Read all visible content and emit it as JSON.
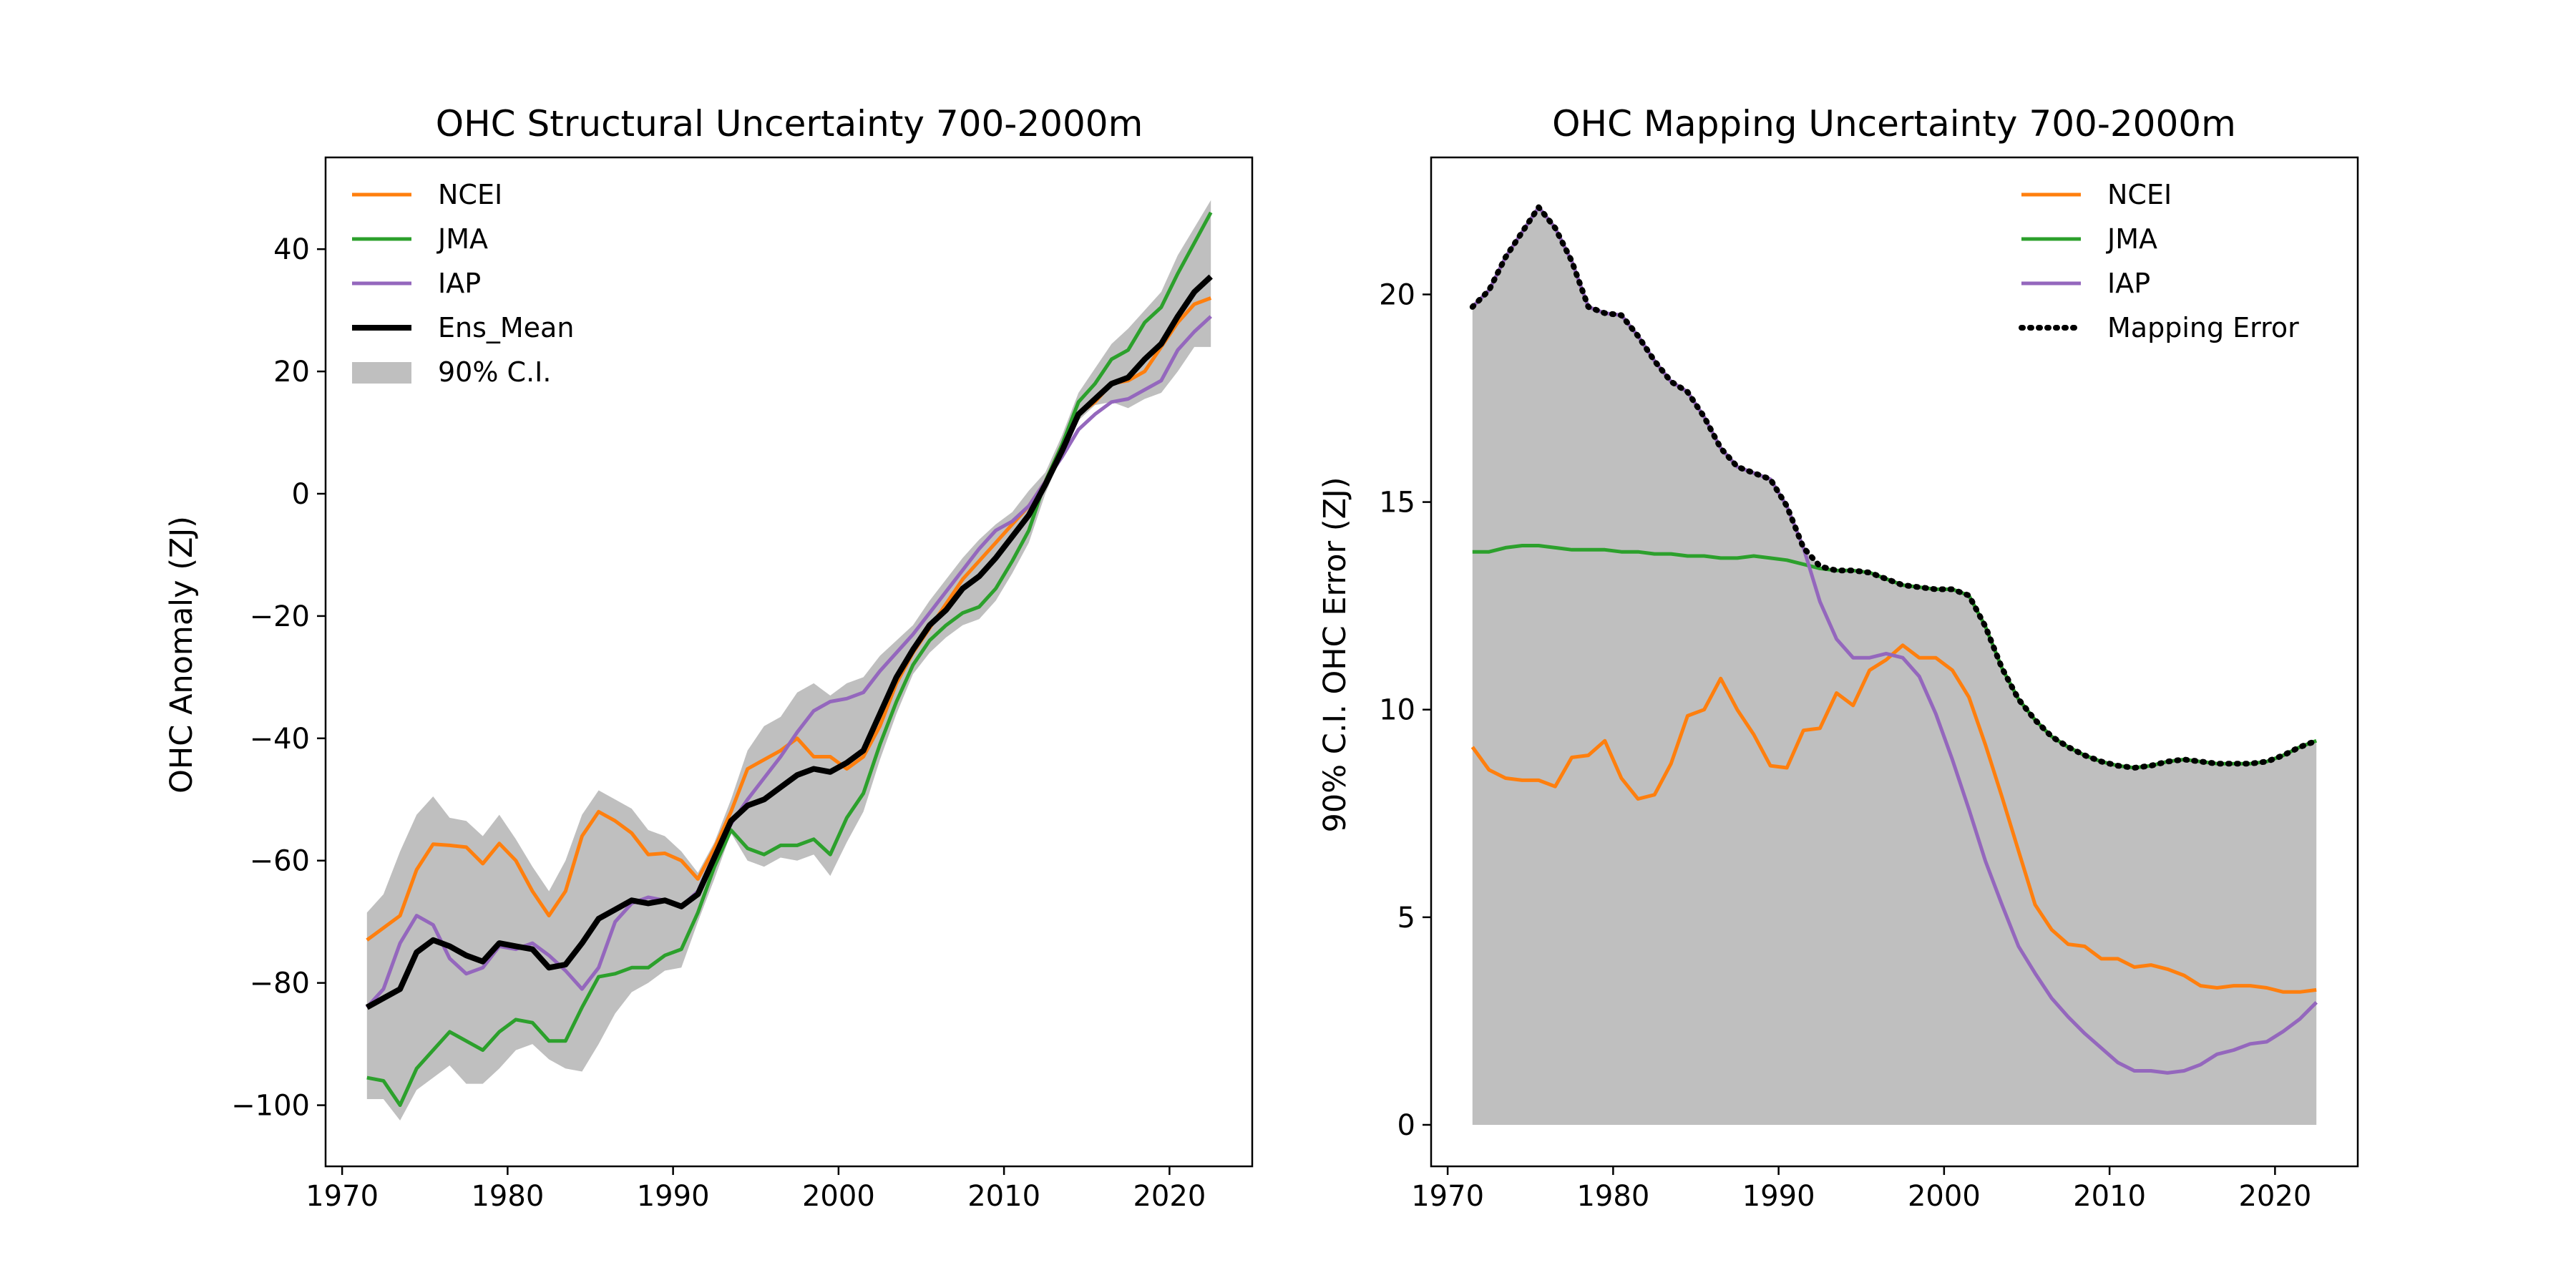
{
  "colors": {
    "ncei": "#ff7f0e",
    "jma": "#2ca02c",
    "iap": "#9467bd",
    "ens_mean": "#000000",
    "ci_fill": "#bfbfbf"
  },
  "chart_data": [
    {
      "type": "line",
      "title": "OHC Structural Uncertainty 700-2000m",
      "xlabel": "",
      "ylabel": "OHC Anomaly (ZJ)",
      "xlim": [
        1969.0,
        2025.0
      ],
      "ylim": [
        -110.0,
        55.0
      ],
      "xticks": [
        1970,
        1980,
        1990,
        2000,
        2010,
        2020
      ],
      "xtick_labels": [
        "1970",
        "1980",
        "1990",
        "2000",
        "2010",
        "2020"
      ],
      "yticks": [
        -100,
        -80,
        -60,
        -40,
        -20,
        0,
        20,
        40
      ],
      "ytick_labels": [
        "−100",
        "−80",
        "−60",
        "−40",
        "−20",
        "0",
        "20",
        "40"
      ],
      "legend_position": "upper-left",
      "x": [
        1971.5,
        1972.5,
        1973.5,
        1974.5,
        1975.5,
        1976.5,
        1977.5,
        1978.5,
        1979.5,
        1980.5,
        1981.5,
        1982.5,
        1983.5,
        1984.5,
        1985.5,
        1986.5,
        1987.5,
        1988.5,
        1989.5,
        1990.5,
        1991.5,
        1992.5,
        1993.5,
        1994.5,
        1995.5,
        1996.5,
        1997.5,
        1998.5,
        1999.5,
        2000.5,
        2001.5,
        2002.5,
        2003.5,
        2004.5,
        2005.5,
        2006.5,
        2007.5,
        2008.5,
        2009.5,
        2010.5,
        2011.5,
        2012.5,
        2013.5,
        2014.5,
        2015.5,
        2016.5,
        2017.5,
        2018.5,
        2019.5,
        2020.5,
        2021.5,
        2022.5
      ],
      "series": [
        {
          "name": "NCEI",
          "color_key": "ncei",
          "values": [
            -73.0,
            -71.0,
            -69.0,
            -61.5,
            -57.3,
            -57.5,
            -57.8,
            -60.5,
            -57.2,
            -60.0,
            -65.0,
            -69.0,
            -65.0,
            -56.0,
            -52.0,
            -53.5,
            -55.5,
            -59.0,
            -58.8,
            -60.0,
            -63.0,
            -58.0,
            -52.0,
            -45.0,
            -43.5,
            -42.0,
            -40.0,
            -43.0,
            -43.0,
            -45.0,
            -43.0,
            -38.0,
            -31.0,
            -26.0,
            -22.0,
            -18.0,
            -14.0,
            -11.0,
            -8.0,
            -5.0,
            -2.0,
            2.0,
            8.0,
            13.0,
            15.0,
            18.0,
            18.5,
            20.0,
            24.0,
            28.0,
            31.0,
            32.0
          ]
        },
        {
          "name": "JMA",
          "color_key": "jma",
          "values": [
            -95.5,
            -96.0,
            -100.0,
            -94.0,
            -91.0,
            -88.0,
            -89.5,
            -91.0,
            -88.0,
            -86.0,
            -86.5,
            -89.5,
            -89.5,
            -84.0,
            -79.0,
            -78.5,
            -77.5,
            -77.5,
            -75.5,
            -74.5,
            -68.5,
            -61.0,
            -55.0,
            -58.0,
            -59.0,
            -57.5,
            -57.5,
            -56.5,
            -59.0,
            -53.0,
            -49.0,
            -41.0,
            -34.0,
            -28.0,
            -24.0,
            -21.5,
            -19.5,
            -18.5,
            -15.5,
            -11.0,
            -6.0,
            2.0,
            8.0,
            15.0,
            18.0,
            22.0,
            23.5,
            28.0,
            30.5,
            36.0,
            41.0,
            46.0
          ]
        },
        {
          "name": "IAP",
          "color_key": "iap",
          "values": [
            -84.0,
            -81.0,
            -73.5,
            -69.0,
            -70.5,
            -76.0,
            -78.5,
            -77.5,
            -74.0,
            -74.5,
            -73.5,
            -75.5,
            -78.0,
            -81.0,
            -77.5,
            -70.0,
            -67.0,
            -66.0,
            -66.5,
            -67.5,
            -65.0,
            -59.0,
            -54.0,
            -50.0,
            -46.5,
            -43.0,
            -39.0,
            -35.5,
            -34.0,
            -33.5,
            -32.5,
            -29.0,
            -26.0,
            -23.0,
            -19.5,
            -16.0,
            -12.5,
            -9.0,
            -6.0,
            -4.5,
            -2.0,
            2.0,
            6.0,
            10.5,
            13.0,
            15.0,
            15.5,
            17.0,
            18.5,
            23.5,
            26.5,
            29.0
          ]
        },
        {
          "name": "Ens_Mean",
          "color_key": "ens_mean",
          "values": [
            -84.0,
            -82.5,
            -81.0,
            -75.0,
            -73.0,
            -74.0,
            -75.5,
            -76.5,
            -73.5,
            -74.0,
            -74.5,
            -77.5,
            -77.0,
            -73.5,
            -69.5,
            -68.0,
            -66.5,
            -67.0,
            -66.5,
            -67.5,
            -65.5,
            -59.5,
            -53.5,
            -51.0,
            -50.0,
            -48.0,
            -46.0,
            -45.0,
            -45.5,
            -44.0,
            -42.0,
            -36.0,
            -30.0,
            -25.5,
            -21.5,
            -19.0,
            -15.5,
            -13.5,
            -10.5,
            -7.0,
            -3.5,
            1.5,
            7.0,
            13.0,
            15.5,
            18.0,
            19.0,
            22.0,
            24.5,
            29.0,
            33.0,
            35.5
          ]
        }
      ],
      "ci_band": {
        "name": "90% C.I.",
        "color_key": "ci_fill",
        "lower": [
          -99.0,
          -99.0,
          -102.5,
          -97.5,
          -95.5,
          -93.5,
          -96.5,
          -96.5,
          -94.0,
          -91.0,
          -90.0,
          -92.5,
          -94.0,
          -94.5,
          -90.0,
          -85.0,
          -81.5,
          -80.0,
          -78.0,
          -77.5,
          -70.0,
          -63.0,
          -55.5,
          -60.0,
          -61.0,
          -59.5,
          -60.0,
          -59.0,
          -62.5,
          -57.0,
          -52.0,
          -43.5,
          -36.0,
          -29.5,
          -26.0,
          -23.5,
          -21.5,
          -20.5,
          -17.5,
          -13.0,
          -8.0,
          0.0,
          6.5,
          12.0,
          14.5,
          15.0,
          14.0,
          15.5,
          16.5,
          20.0,
          24.0,
          24.0
        ],
        "upper": [
          -68.5,
          -65.5,
          -58.5,
          -52.5,
          -49.5,
          -53.0,
          -53.5,
          -56.0,
          -52.5,
          -56.5,
          -61.0,
          -65.0,
          -60.0,
          -52.5,
          -48.5,
          -50.0,
          -51.5,
          -55.0,
          -56.0,
          -58.5,
          -62.0,
          -57.0,
          -50.0,
          -42.0,
          -38.0,
          -36.5,
          -32.5,
          -31.0,
          -33.0,
          -31.0,
          -30.0,
          -26.5,
          -24.0,
          -21.5,
          -17.5,
          -14.0,
          -10.5,
          -7.5,
          -5.0,
          -3.0,
          0.5,
          3.5,
          9.5,
          16.5,
          20.5,
          24.5,
          27.0,
          30.0,
          33.0,
          39.0,
          43.5,
          48.0
        ]
      }
    },
    {
      "type": "line",
      "title": "OHC Mapping Uncertainty 700-2000m",
      "xlabel": "",
      "ylabel": "90% C.I. OHC Error (ZJ)",
      "xlim": [
        1969.0,
        2025.0
      ],
      "ylim": [
        -1.0,
        23.3
      ],
      "xticks": [
        1970,
        1980,
        1990,
        2000,
        2010,
        2020
      ],
      "xtick_labels": [
        "1970",
        "1980",
        "1990",
        "2000",
        "2010",
        "2020"
      ],
      "yticks": [
        0,
        5,
        10,
        15,
        20
      ],
      "ytick_labels": [
        "0",
        "5",
        "10",
        "15",
        "20"
      ],
      "legend_position": "upper-right",
      "x": [
        1971.5,
        1972.5,
        1973.5,
        1974.5,
        1975.5,
        1976.5,
        1977.5,
        1978.5,
        1979.5,
        1980.5,
        1981.5,
        1982.5,
        1983.5,
        1984.5,
        1985.5,
        1986.5,
        1987.5,
        1988.5,
        1989.5,
        1990.5,
        1991.5,
        1992.5,
        1993.5,
        1994.5,
        1995.5,
        1996.5,
        1997.5,
        1998.5,
        1999.5,
        2000.5,
        2001.5,
        2002.5,
        2003.5,
        2004.5,
        2005.5,
        2006.5,
        2007.5,
        2008.5,
        2009.5,
        2010.5,
        2011.5,
        2012.5,
        2013.5,
        2014.5,
        2015.5,
        2016.5,
        2017.5,
        2018.5,
        2019.5,
        2020.5,
        2021.5,
        2022.5
      ],
      "series": [
        {
          "name": "NCEI",
          "color_key": "ncei",
          "values": [
            9.1,
            8.55,
            8.35,
            8.3,
            8.3,
            8.15,
            8.85,
            8.9,
            9.25,
            8.35,
            7.85,
            7.95,
            8.7,
            9.85,
            10.0,
            10.75,
            10.0,
            9.4,
            8.65,
            8.6,
            9.5,
            9.55,
            10.4,
            10.1,
            10.95,
            11.2,
            11.55,
            11.25,
            11.25,
            10.95,
            10.3,
            9.15,
            7.9,
            6.6,
            5.3,
            4.7,
            4.35,
            4.3,
            4.0,
            4.0,
            3.8,
            3.85,
            3.75,
            3.6,
            3.35,
            3.3,
            3.35,
            3.35,
            3.3,
            3.2,
            3.2,
            3.25
          ]
        },
        {
          "name": "JMA",
          "color_key": "jma",
          "values": [
            13.8,
            13.8,
            13.9,
            13.95,
            13.95,
            13.9,
            13.85,
            13.85,
            13.85,
            13.8,
            13.8,
            13.75,
            13.75,
            13.7,
            13.7,
            13.65,
            13.65,
            13.7,
            13.65,
            13.6,
            13.5,
            13.4,
            13.35,
            13.35,
            13.3,
            13.15,
            13.0,
            12.95,
            12.9,
            12.9,
            12.75,
            12.0,
            11.0,
            10.25,
            9.75,
            9.35,
            9.1,
            8.9,
            8.75,
            8.65,
            8.6,
            8.65,
            8.75,
            8.8,
            8.75,
            8.7,
            8.7,
            8.7,
            8.75,
            8.9,
            9.1,
            9.25
          ]
        },
        {
          "name": "IAP",
          "color_key": "iap",
          "values": [
            19.7,
            20.1,
            20.9,
            21.5,
            22.1,
            21.6,
            20.8,
            19.7,
            19.55,
            19.5,
            19.0,
            18.4,
            17.9,
            17.65,
            17.05,
            16.3,
            15.85,
            15.7,
            15.55,
            14.9,
            13.9,
            12.6,
            11.7,
            11.25,
            11.25,
            11.35,
            11.25,
            10.8,
            9.9,
            8.8,
            7.6,
            6.35,
            5.3,
            4.3,
            3.65,
            3.05,
            2.6,
            2.2,
            1.85,
            1.5,
            1.3,
            1.3,
            1.25,
            1.3,
            1.45,
            1.7,
            1.8,
            1.95,
            2.0,
            2.25,
            2.55,
            2.95
          ]
        },
        {
          "name": "Mapping Error",
          "color_key": "ens_mean",
          "dotted": true,
          "values": [
            19.7,
            20.1,
            20.9,
            21.5,
            22.1,
            21.6,
            20.8,
            19.7,
            19.55,
            19.5,
            19.0,
            18.4,
            17.9,
            17.65,
            17.05,
            16.3,
            15.85,
            15.7,
            15.55,
            14.9,
            13.9,
            13.45,
            13.35,
            13.35,
            13.3,
            13.15,
            13.0,
            12.95,
            12.9,
            12.9,
            12.75,
            12.0,
            11.0,
            10.25,
            9.75,
            9.35,
            9.1,
            8.9,
            8.75,
            8.65,
            8.6,
            8.65,
            8.75,
            8.8,
            8.75,
            8.7,
            8.7,
            8.7,
            8.75,
            8.9,
            9.1,
            9.25
          ]
        }
      ],
      "fill_under": {
        "series": "Mapping Error",
        "color_key": "ci_fill"
      }
    }
  ]
}
